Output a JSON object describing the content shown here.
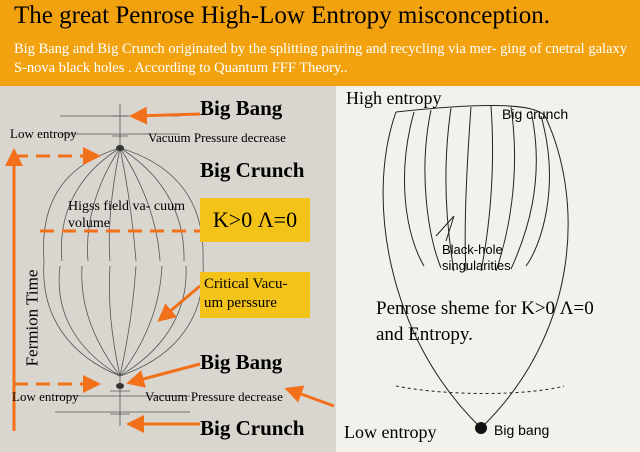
{
  "header": {
    "title": "The great Penrose High-Low Entropy misconception.",
    "subtitle": "Big Bang and Big Crunch originated by the splitting pairing and recycling via mer- ging of cnetral galaxy S-nova black holes . According to Quantum FFF Theory.."
  },
  "left": {
    "big_bang_top": "Big Bang",
    "low_entropy_top": "Low entropy",
    "vacuum_pressure_top": "Vacuum Pressure decrease",
    "big_crunch_top": "Big Crunch",
    "higgs_field": "Higss field va- cuum volume",
    "equation": "K>0 Λ=0",
    "critical_vacuum": "Critical Vacu- um perssure",
    "fermion_time": "Fermion Time",
    "big_bang_bottom": "Big Bang",
    "low_entropy_bottom": "Low entropy",
    "vacuum_pressure_bottom": "Vacuum Pressure decrease",
    "big_crunch_bottom": "Big Crunch"
  },
  "right": {
    "high_entropy": "High entropy",
    "big_crunch": "Big crunch",
    "black_hole_singularities": "Black-hole singularities",
    "penrose_scheme": "Penrose sheme for K>0 Λ=0 and Entropy.",
    "low_entropy": "Low entropy",
    "big_bang": "Big bang"
  },
  "colors": {
    "background": "#f3a20f",
    "arrow": "#f2701a",
    "box": "#f3c319"
  }
}
